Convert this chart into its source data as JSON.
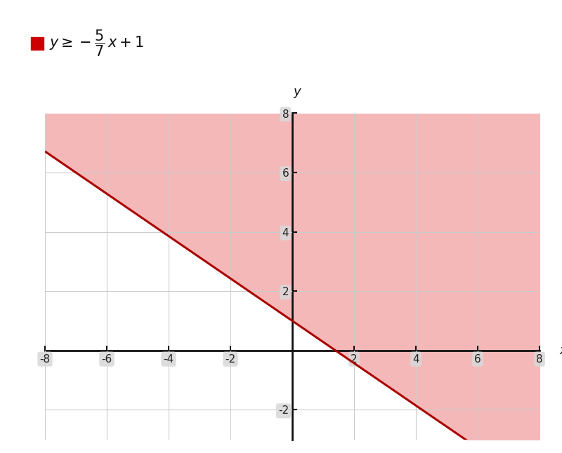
{
  "xlim": [
    -8,
    8
  ],
  "ylim": [
    -3,
    8
  ],
  "slope": -0.7142857142857143,
  "intercept": 1,
  "line_color": "#aa0000",
  "line_width": 2.2,
  "shade_color": "#f5b8b8",
  "shade_alpha": 1.0,
  "background_color": "#ffffff",
  "grid_color": "#cccccc",
  "axis_color": "#111111",
  "legend_color": "#cc0000",
  "xticks": [
    -8,
    -6,
    -4,
    -2,
    2,
    4,
    6,
    8
  ],
  "yticks": [
    -2,
    2,
    4,
    6,
    8
  ],
  "tick_label_bg": "#d8d8d8",
  "xlabel": "x",
  "ylabel": "y"
}
